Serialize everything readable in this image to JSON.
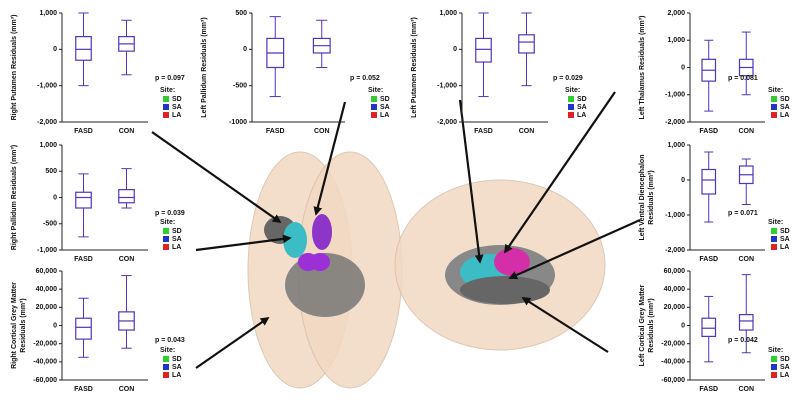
{
  "chart_data": [
    {
      "type": "box",
      "ylabel": [
        "Right Putamen Residuals (mm³)"
      ],
      "categories": [
        "FASD",
        "CON"
      ],
      "box_color": "#5533bb",
      "boxes": [
        {
          "min": -1000,
          "q1": -300,
          "median": 0,
          "q3": 350,
          "max": 1000
        },
        {
          "min": -700,
          "q1": -50,
          "median": 150,
          "q3": 350,
          "max": 800
        }
      ],
      "ylim": [
        -2000,
        1000
      ],
      "yticks": [
        {
          "value": 1000,
          "label": "1,000"
        },
        0,
        {
          "value": -1000,
          "label": "-1,000"
        },
        {
          "value": -2000,
          "label": "-2,000"
        }
      ],
      "annotation": "p = 0.097",
      "legend_title": "Site:",
      "series": [
        {
          "name": "SD",
          "color": "#33cc33"
        },
        {
          "name": "SA",
          "color": "#2233cc"
        },
        {
          "name": "LA",
          "color": "#dd2222"
        }
      ]
    },
    {
      "type": "box",
      "ylabel": [
        "Left Pallidum Residuals (mm³)"
      ],
      "categories": [
        "FASD",
        "CON"
      ],
      "box_color": "#5533bb",
      "boxes": [
        {
          "min": -650,
          "q1": -250,
          "median": -50,
          "q3": 150,
          "max": 450
        },
        {
          "min": -250,
          "q1": -50,
          "median": 50,
          "q3": 150,
          "max": 400
        }
      ],
      "ylim": [
        -1000,
        500
      ],
      "yticks": [
        500,
        0,
        -500,
        -1000
      ],
      "annotation": "p = 0.052",
      "legend_title": "Site:",
      "series": [
        {
          "name": "SD",
          "color": "#33cc33"
        },
        {
          "name": "SA",
          "color": "#2233cc"
        },
        {
          "name": "LA",
          "color": "#dd2222"
        }
      ]
    },
    {
      "type": "box",
      "ylabel": [
        "Left Putamen Residuals (mm³)"
      ],
      "categories": [
        "FASD",
        "CON"
      ],
      "box_color": "#5533bb",
      "boxes": [
        {
          "min": -1300,
          "q1": -350,
          "median": 0,
          "q3": 300,
          "max": 1000
        },
        {
          "min": -1000,
          "q1": -100,
          "median": 200,
          "q3": 400,
          "max": 1000
        }
      ],
      "ylim": [
        -2000,
        1000
      ],
      "yticks": [
        {
          "value": 1000,
          "label": "1,000"
        },
        0,
        {
          "value": -1000,
          "label": "-1,000"
        },
        {
          "value": -2000,
          "label": "-2,000"
        }
      ],
      "annotation": "p = 0.029",
      "legend_title": "Site:",
      "series": [
        {
          "name": "SD",
          "color": "#33cc33"
        },
        {
          "name": "SA",
          "color": "#2233cc"
        },
        {
          "name": "LA",
          "color": "#dd2222"
        }
      ]
    },
    {
      "type": "box",
      "ylabel": [
        "Left Thalamus Residuals (mm³)"
      ],
      "categories": [
        "FASD",
        "CON"
      ],
      "box_color": "#5533bb",
      "boxes": [
        {
          "min": -1600,
          "q1": -500,
          "median": -100,
          "q3": 300,
          "max": 1000
        },
        {
          "min": -1000,
          "q1": -300,
          "median": 0,
          "q3": 300,
          "max": 1300
        }
      ],
      "ylim": [
        -2000,
        2000
      ],
      "yticks": [
        {
          "value": 2000,
          "label": "2,000"
        },
        {
          "value": 1000,
          "label": "1,000"
        },
        0,
        {
          "value": -1000,
          "label": "-1,000"
        },
        {
          "value": -2000,
          "label": "-2,000"
        }
      ],
      "annotation": "p = 0.081",
      "legend_title": "Site:",
      "series": [
        {
          "name": "SD",
          "color": "#33cc33"
        },
        {
          "name": "SA",
          "color": "#2233cc"
        },
        {
          "name": "LA",
          "color": "#dd2222"
        }
      ]
    },
    {
      "type": "box",
      "ylabel": [
        "Right Pallidum Residuals (mm³)"
      ],
      "categories": [
        "FASD",
        "CON"
      ],
      "box_color": "#5533bb",
      "boxes": [
        {
          "min": -750,
          "q1": -200,
          "median": 0,
          "q3": 100,
          "max": 450
        },
        {
          "min": -200,
          "q1": -100,
          "median": 0,
          "q3": 150,
          "max": 550
        }
      ],
      "ylim": [
        -1000,
        1000
      ],
      "yticks": [
        {
          "value": 1000,
          "label": "1,000"
        },
        500,
        0,
        -500,
        {
          "value": -1000,
          "label": "-1,000"
        }
      ],
      "annotation": "p = 0.039",
      "legend_title": "Site:",
      "series": [
        {
          "name": "SD",
          "color": "#33cc33"
        },
        {
          "name": "SA",
          "color": "#2233cc"
        },
        {
          "name": "LA",
          "color": "#dd2222"
        }
      ]
    },
    {
      "type": "box",
      "ylabel": [
        "Left Ventral Diencephalon",
        "Residuals (mm³)"
      ],
      "categories": [
        "FASD",
        "CON"
      ],
      "box_color": "#5533bb",
      "boxes": [
        {
          "min": -1200,
          "q1": -400,
          "median": 0,
          "q3": 300,
          "max": 800
        },
        {
          "min": -700,
          "q1": -100,
          "median": 150,
          "q3": 400,
          "max": 600
        }
      ],
      "ylim": [
        -2000,
        1000
      ],
      "yticks": [
        {
          "value": 1000,
          "label": "1,000"
        },
        0,
        {
          "value": -1000,
          "label": "-1,000"
        },
        {
          "value": -2000,
          "label": "-2,000"
        }
      ],
      "annotation": "p = 0.071",
      "legend_title": "Site:",
      "series": [
        {
          "name": "SD",
          "color": "#33cc33"
        },
        {
          "name": "SA",
          "color": "#2233cc"
        },
        {
          "name": "LA",
          "color": "#dd2222"
        }
      ]
    },
    {
      "type": "box",
      "ylabel": [
        "Right Cortical Grey Matter",
        "Residuals (mm³)"
      ],
      "categories": [
        "FASD",
        "CON"
      ],
      "box_color": "#5533bb",
      "boxes": [
        {
          "min": -35000,
          "q1": -15000,
          "median": -2000,
          "q3": 8000,
          "max": 30000
        },
        {
          "min": -25000,
          "q1": -5000,
          "median": 5000,
          "q3": 15000,
          "max": 55000
        }
      ],
      "ylim": [
        -60000,
        60000
      ],
      "yticks": [
        {
          "value": 60000,
          "label": "60,000"
        },
        {
          "value": 40000,
          "label": "40,000"
        },
        {
          "value": 20000,
          "label": "20,000"
        },
        0,
        {
          "value": -20000,
          "label": "-20,000"
        },
        {
          "value": -40000,
          "label": "-40,000"
        },
        {
          "value": -60000,
          "label": "-60,000"
        }
      ],
      "annotation": "p = 0.043",
      "legend_title": "Site:",
      "series": [
        {
          "name": "SD",
          "color": "#33cc33"
        },
        {
          "name": "SA",
          "color": "#2233cc"
        },
        {
          "name": "LA",
          "color": "#dd2222"
        }
      ]
    },
    {
      "type": "box",
      "ylabel": [
        "Left Cortical Grey Matter",
        "Residuals (mm³)"
      ],
      "categories": [
        "FASD",
        "CON"
      ],
      "box_color": "#5533bb",
      "boxes": [
        {
          "min": -40000,
          "q1": -12000,
          "median": -3000,
          "q3": 8000,
          "max": 32000
        },
        {
          "min": -30000,
          "q1": -5000,
          "median": 5000,
          "q3": 12000,
          "max": 56000
        }
      ],
      "ylim": [
        -60000,
        60000
      ],
      "yticks": [
        {
          "value": 60000,
          "label": "60,000"
        },
        {
          "value": 40000,
          "label": "40,000"
        },
        {
          "value": 20000,
          "label": "20,000"
        },
        0,
        {
          "value": -20000,
          "label": "-20,000"
        },
        {
          "value": -40000,
          "label": "-40,000"
        },
        {
          "value": -60000,
          "label": "-60,000"
        }
      ],
      "annotation": "p = 0.042",
      "legend_title": "Site:",
      "series": [
        {
          "name": "SD",
          "color": "#33cc33"
        },
        {
          "name": "SA",
          "color": "#2233cc"
        },
        {
          "name": "LA",
          "color": "#dd2222"
        }
      ]
    }
  ]
}
